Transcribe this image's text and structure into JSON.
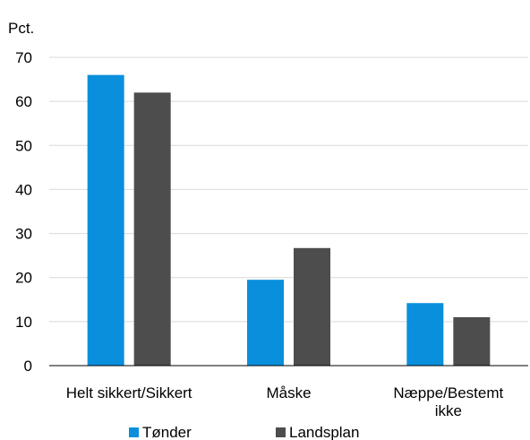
{
  "chart_data": {
    "type": "bar",
    "ylabel": "Pct.",
    "ylim": [
      0,
      70
    ],
    "yticks": [
      0,
      10,
      20,
      30,
      40,
      50,
      60,
      70
    ],
    "grid": true,
    "legend_position": "bottom",
    "categories": [
      [
        "Helt sikkert/Sikkert"
      ],
      [
        "Måske"
      ],
      [
        "Næppe/Bestemt",
        "ikke"
      ]
    ],
    "series": [
      {
        "name": "Tønder",
        "color": "#0a8fdc",
        "values": [
          66,
          19.5,
          14.2
        ]
      },
      {
        "name": "Landsplan",
        "color": "#4d4d4d",
        "values": [
          62,
          26.7,
          11
        ]
      }
    ]
  }
}
